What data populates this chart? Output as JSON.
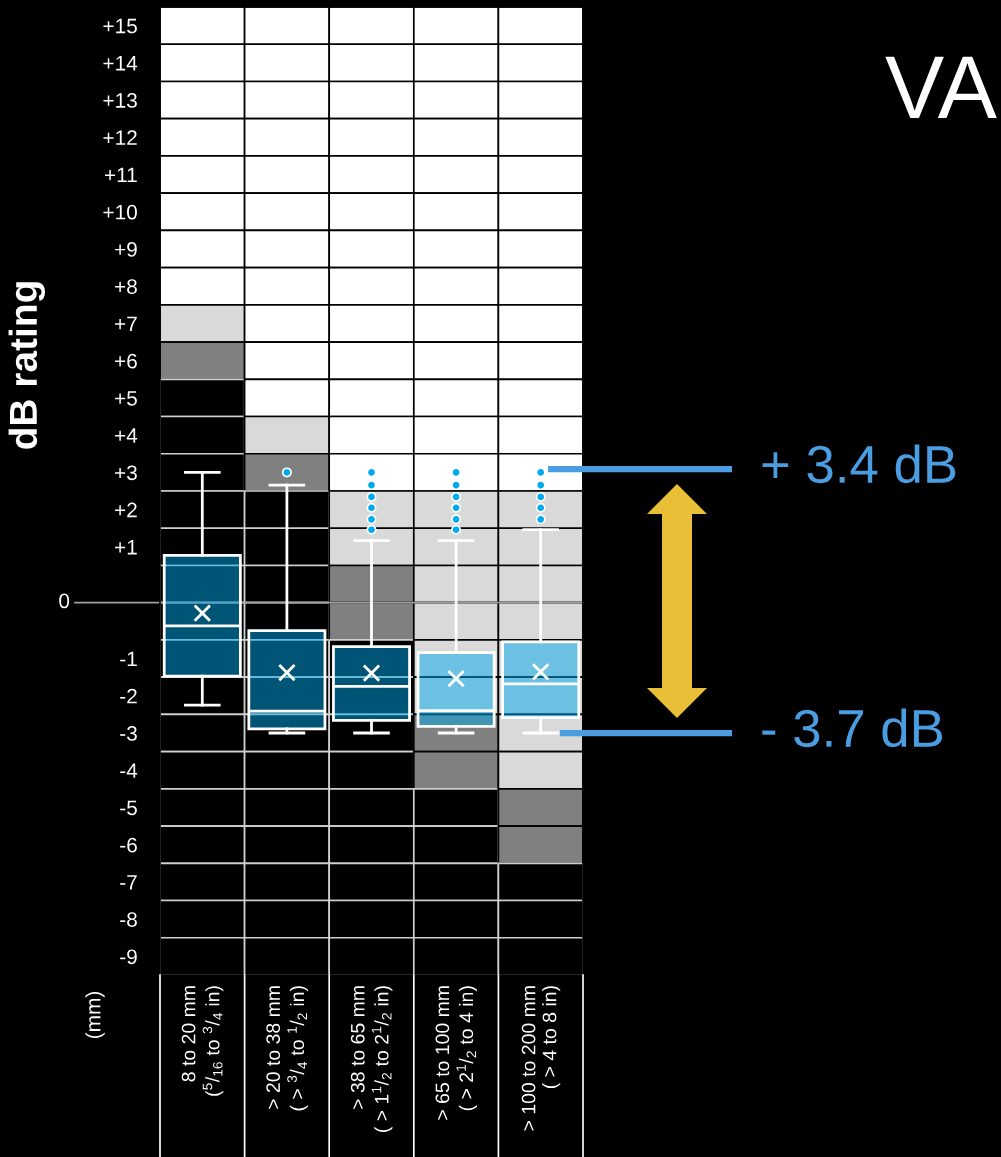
{
  "chart_data": {
    "type": "box",
    "title": "VA",
    "ylabel": "dB rating",
    "categories": [
      "8 to 20 mm\n($^{5}$/$_{16}$ to $^{3}$/$_{4}$ in)",
      "> 20 to 38 mm\n( > $^{3}$/$_{4}$ to $^{1}$/$_{2}$ in)",
      "> 38 to 65 mm\n( > 1$^{1}$/$_{2}$ to 2$^{1}$/$_{2}$ in)",
      "> 65 to 100 mm\n( > 2$^{1}$/$_{2}$ to 4 in)",
      "> 100 to 200 mm\n( > 4 to 8 in)"
    ],
    "series": [
      {
        "color": "#00aaee",
        "boxes": [
          {
            "low": -3.25,
            "q1": -2.47,
            "median": -1.12,
            "q3": 0.77,
            "high": 3.0,
            "mean": -0.78
          },
          {
            "low": -4.0,
            "q1": -3.89,
            "median": -3.41,
            "q3": -1.25,
            "high": 2.66,
            "mean": -2.38,
            "outliers": [
              3.0
            ]
          },
          {
            "low": -4.0,
            "q1": -3.66,
            "median": -2.75,
            "q3": -1.68,
            "high": 1.17,
            "mean": -2.39,
            "outliers": [
              3.0,
              2.66,
              2.34,
              2.05,
              1.74,
              1.46
            ]
          },
          {
            "low": -4.0,
            "q1": -3.82,
            "median": -3.4,
            "q3": -1.84,
            "high": 1.17,
            "mean": -2.54,
            "outliers": [
              3.0,
              2.66,
              2.34,
              2.05,
              1.74,
              1.46
            ]
          },
          {
            "low": -4.0,
            "q1": -3.59,
            "median": -2.68,
            "q3": -1.55,
            "high": 1.46,
            "mean": -2.36,
            "outliers": [
              3.0,
              2.66,
              2.34,
              2.05,
              1.74
            ]
          }
        ]
      }
    ],
    "ylim": [
      -10.5,
      15.5
    ],
    "yticks": [
      {
        "value": 15,
        "label": "+15"
      },
      {
        "value": 14,
        "label": "+14"
      },
      {
        "value": 13,
        "label": "+13"
      },
      {
        "value": 12,
        "label": "+12"
      },
      {
        "value": 11,
        "label": "+11"
      },
      {
        "value": 10,
        "label": "+10"
      },
      {
        "value": 9,
        "label": "+9"
      },
      {
        "value": 8,
        "label": "+8"
      },
      {
        "value": 7,
        "label": "+7"
      },
      {
        "value": 6,
        "label": "+6"
      },
      {
        "value": 5,
        "label": "+5"
      },
      {
        "value": 4,
        "label": "+4"
      },
      {
        "value": 3,
        "label": "+3"
      },
      {
        "value": 2,
        "label": "+2"
      },
      {
        "value": 1,
        "label": "+1"
      }
    ],
    "y2lim": [
      -9.5,
      16.5
    ],
    "y2ticks": [
      -1,
      -2,
      -3,
      -4,
      -5,
      -6,
      -7,
      -8,
      -9
    ],
    "ref_lines": [
      {
        "axis": "y",
        "value": -0.5,
        "label": "0",
        "color": "#a0a0a0"
      }
    ],
    "annotations": [
      "+ 3.4 dB",
      "- 3.7 dB",
      "(mm)"
    ]
  }
}
